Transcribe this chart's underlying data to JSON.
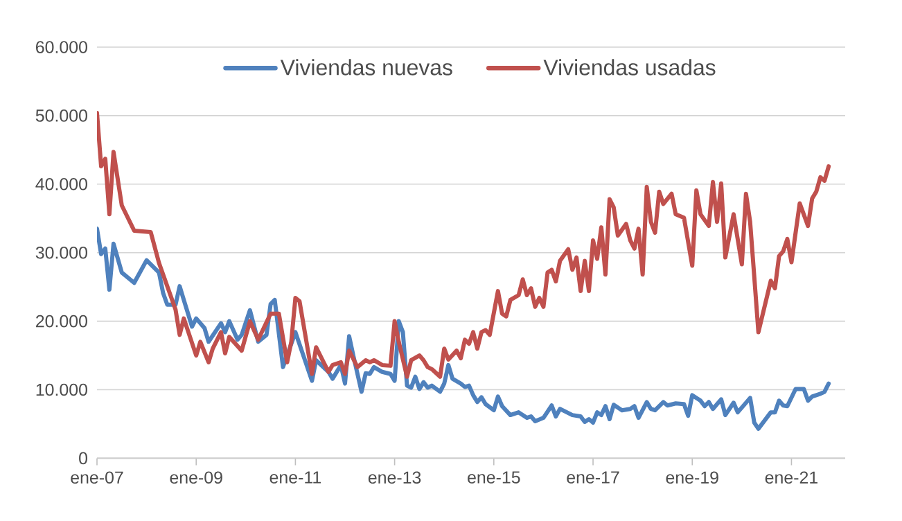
{
  "chart_data": {
    "type": "line",
    "legend": "top",
    "grid": "y",
    "line_style": "solid",
    "xlim": [
      "2007-01",
      "2022-02"
    ],
    "xticks": [
      {
        "value": "2007-01",
        "label": "ene-07"
      },
      {
        "value": "2009-01",
        "label": "ene-09"
      },
      {
        "value": "2011-01",
        "label": "ene-11"
      },
      {
        "value": "2013-01",
        "label": "ene-13"
      },
      {
        "value": "2015-01",
        "label": "ene-15"
      },
      {
        "value": "2017-01",
        "label": "ene-17"
      },
      {
        "value": "2019-01",
        "label": "ene-19"
      },
      {
        "value": "2021-01",
        "label": "ene-21"
      }
    ],
    "ylim": [
      0,
      60000
    ],
    "yticks": [
      0,
      {
        "value": 10000,
        "label": "10.000"
      },
      {
        "value": 20000,
        "label": "20.000"
      },
      {
        "value": 30000,
        "label": "30.000"
      },
      {
        "value": 40000,
        "label": "40.000"
      },
      {
        "value": 50000,
        "label": "50.000"
      },
      {
        "value": 60000,
        "label": "60.000"
      }
    ],
    "series": [
      {
        "name": "Viviendas nuevas",
        "color": "#4f81bd",
        "x": [
          "2007-01",
          "2007-02",
          "2007-03",
          "2007-04",
          "2007-05",
          "2007-07",
          "2007-10",
          "2008-01",
          "2008-04",
          "2008-05",
          "2008-06",
          "2008-08",
          "2008-09",
          "2008-10",
          "2008-12",
          "2009-01",
          "2009-03",
          "2009-04",
          "2009-07",
          "2009-08",
          "2009-09",
          "2009-11",
          "2009-12",
          "2010-02",
          "2010-04",
          "2010-06",
          "2010-07",
          "2010-08",
          "2010-10",
          "2010-12",
          "2011-01",
          "2011-05",
          "2011-06",
          "2011-09",
          "2011-10",
          "2011-12",
          "2012-01",
          "2012-02",
          "2012-03",
          "2012-05",
          "2012-06",
          "2012-07",
          "2012-08",
          "2012-10",
          "2012-12",
          "2013-01",
          "2013-02",
          "2013-03",
          "2013-04",
          "2013-05",
          "2013-06",
          "2013-07",
          "2013-08",
          "2013-09",
          "2013-10",
          "2013-12",
          "2014-01",
          "2014-02",
          "2014-03",
          "2014-05",
          "2014-06",
          "2014-07",
          "2014-08",
          "2014-09",
          "2014-10",
          "2014-11",
          "2015-01",
          "2015-02",
          "2015-03",
          "2015-05",
          "2015-07",
          "2015-09",
          "2015-10",
          "2015-11",
          "2016-01",
          "2016-03",
          "2016-04",
          "2016-05",
          "2016-08",
          "2016-10",
          "2016-11",
          "2016-12",
          "2017-01",
          "2017-02",
          "2017-03",
          "2017-04",
          "2017-05",
          "2017-06",
          "2017-07",
          "2017-08",
          "2017-10",
          "2017-11",
          "2017-12",
          "2018-02",
          "2018-03",
          "2018-04",
          "2018-06",
          "2018-07",
          "2018-09",
          "2018-11",
          "2018-12",
          "2019-01",
          "2019-03",
          "2019-04",
          "2019-05",
          "2019-06",
          "2019-08",
          "2019-09",
          "2019-11",
          "2019-12",
          "2020-03",
          "2020-04",
          "2020-05",
          "2020-08",
          "2020-09",
          "2020-10",
          "2020-11",
          "2020-12",
          "2021-02",
          "2021-04",
          "2021-05",
          "2021-06",
          "2021-08",
          "2021-09",
          "2021-10"
        ],
        "values": [
          33500,
          29800,
          30600,
          24600,
          31300,
          27100,
          25600,
          28900,
          27100,
          24100,
          22400,
          22400,
          25100,
          23100,
          19200,
          20400,
          19000,
          17000,
          19700,
          18400,
          20000,
          17300,
          18000,
          21600,
          17000,
          18000,
          22500,
          23100,
          13300,
          16700,
          18400,
          11300,
          14300,
          12600,
          11600,
          13600,
          10900,
          17800,
          15000,
          9700,
          12400,
          12300,
          13300,
          12600,
          12300,
          11300,
          20000,
          18400,
          10600,
          10300,
          11900,
          10100,
          11100,
          10300,
          10600,
          9700,
          10900,
          13600,
          11600,
          10900,
          10400,
          10600,
          9200,
          8200,
          8900,
          7900,
          7000,
          9000,
          7600,
          6300,
          6700,
          5900,
          6100,
          5400,
          5900,
          7700,
          6100,
          7200,
          6300,
          6100,
          5300,
          5700,
          5200,
          6700,
          6300,
          7600,
          5700,
          7800,
          7400,
          7000,
          7200,
          7600,
          5900,
          8200,
          7200,
          7000,
          8200,
          7700,
          8000,
          7900,
          6200,
          9200,
          8400,
          7600,
          8200,
          7200,
          8600,
          6300,
          8100,
          6700,
          8800,
          5200,
          4300,
          6700,
          6700,
          8400,
          7700,
          7600,
          10100,
          10100,
          8400,
          9000,
          9400,
          9700,
          10900
        ]
      },
      {
        "name": "Viviendas usadas",
        "color": "#c0504d",
        "x": [
          "2007-01",
          "2007-02",
          "2007-03",
          "2007-04",
          "2007-05",
          "2007-07",
          "2007-10",
          "2008-02",
          "2008-04",
          "2008-06",
          "2008-08",
          "2008-09",
          "2008-10",
          "2009-01",
          "2009-02",
          "2009-04",
          "2009-05",
          "2009-07",
          "2009-08",
          "2009-09",
          "2009-12",
          "2010-02",
          "2010-04",
          "2010-07",
          "2010-09",
          "2010-11",
          "2010-12",
          "2011-01",
          "2011-02",
          "2011-05",
          "2011-06",
          "2011-07",
          "2011-09",
          "2011-10",
          "2011-12",
          "2012-01",
          "2012-02",
          "2012-04",
          "2012-06",
          "2012-07",
          "2012-08",
          "2012-10",
          "2012-12",
          "2013-01",
          "2013-02",
          "2013-04",
          "2013-05",
          "2013-07",
          "2013-08",
          "2013-09",
          "2013-10",
          "2013-12",
          "2014-01",
          "2014-02",
          "2014-04",
          "2014-05",
          "2014-06",
          "2014-07",
          "2014-08",
          "2014-09",
          "2014-10",
          "2014-11",
          "2014-12",
          "2015-02",
          "2015-03",
          "2015-04",
          "2015-05",
          "2015-07",
          "2015-08",
          "2015-09",
          "2015-10",
          "2015-11",
          "2015-12",
          "2016-01",
          "2016-02",
          "2016-03",
          "2016-04",
          "2016-05",
          "2016-07",
          "2016-08",
          "2016-09",
          "2016-10",
          "2016-11",
          "2016-12",
          "2017-01",
          "2017-02",
          "2017-03",
          "2017-04",
          "2017-05",
          "2017-06",
          "2017-07",
          "2017-09",
          "2017-10",
          "2017-11",
          "2017-12",
          "2018-01",
          "2018-02",
          "2018-03",
          "2018-04",
          "2018-05",
          "2018-06",
          "2018-08",
          "2018-09",
          "2018-11",
          "2019-01",
          "2019-02",
          "2019-03",
          "2019-05",
          "2019-06",
          "2019-07",
          "2019-08",
          "2019-09",
          "2019-11",
          "2020-01",
          "2020-02",
          "2020-03",
          "2020-04",
          "2020-05",
          "2020-08",
          "2020-09",
          "2020-10",
          "2020-11",
          "2020-12",
          "2021-01",
          "2021-02",
          "2021-03",
          "2021-05",
          "2021-06",
          "2021-07",
          "2021-08",
          "2021-09",
          "2021-10"
        ],
        "values": [
          50400,
          42600,
          43700,
          35600,
          44700,
          36900,
          33200,
          33000,
          28500,
          25100,
          21700,
          18000,
          20400,
          15000,
          17000,
          14000,
          16000,
          18400,
          15300,
          17700,
          15700,
          20000,
          17300,
          21100,
          21100,
          14000,
          17000,
          23400,
          22900,
          12300,
          16200,
          15000,
          12600,
          13600,
          14000,
          12300,
          15700,
          13300,
          14300,
          14000,
          14300,
          13600,
          13500,
          20000,
          17000,
          11900,
          14300,
          15000,
          14300,
          13300,
          13000,
          11900,
          16000,
          14400,
          15700,
          14600,
          17300,
          16700,
          18400,
          16000,
          18400,
          18700,
          18000,
          24400,
          21100,
          20700,
          23100,
          23800,
          26100,
          23800,
          24800,
          22100,
          23400,
          22100,
          27100,
          27500,
          25800,
          28800,
          30500,
          27500,
          29300,
          24400,
          28800,
          24400,
          31800,
          29100,
          33700,
          26800,
          37800,
          36600,
          32500,
          34200,
          31800,
          30600,
          33500,
          26800,
          39600,
          34500,
          32900,
          38900,
          37100,
          38600,
          35600,
          35100,
          28100,
          39100,
          35600,
          33900,
          40300,
          34500,
          40100,
          29300,
          35600,
          28300,
          38600,
          34500,
          26500,
          18400,
          25900,
          24800,
          29500,
          30200,
          32000,
          28600,
          32900,
          37200,
          33900,
          37900,
          38900,
          41000,
          40500,
          42600
        ]
      }
    ]
  }
}
